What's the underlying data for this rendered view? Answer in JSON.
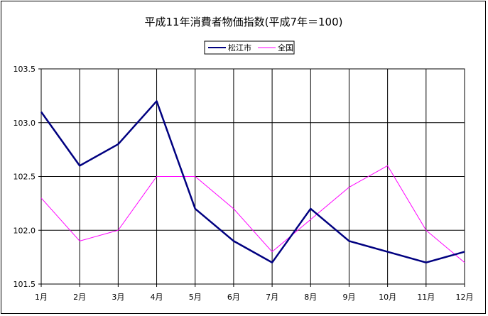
{
  "chart_data": {
    "type": "line",
    "title": "平成11年消費者物価指数(平成7年＝100)",
    "categories": [
      "1月",
      "2月",
      "3月",
      "4月",
      "5月",
      "6月",
      "7月",
      "8月",
      "9月",
      "10月",
      "11月",
      "12月"
    ],
    "series": [
      {
        "name": "松江市",
        "color": "#000080",
        "values": [
          103.1,
          102.6,
          102.8,
          103.2,
          102.2,
          101.9,
          101.7,
          102.2,
          101.9,
          101.8,
          101.7,
          101.8
        ]
      },
      {
        "name": "全国",
        "color": "#ff00ff",
        "values": [
          102.3,
          101.9,
          102.0,
          102.5,
          102.5,
          102.2,
          101.8,
          102.1,
          102.4,
          102.6,
          102.0,
          101.7
        ]
      }
    ],
    "ylim": [
      101.5,
      103.5
    ],
    "yticks": [
      "101.5",
      "102.0",
      "102.5",
      "103.0",
      "103.5"
    ],
    "grid": true,
    "legend": "top-center"
  }
}
